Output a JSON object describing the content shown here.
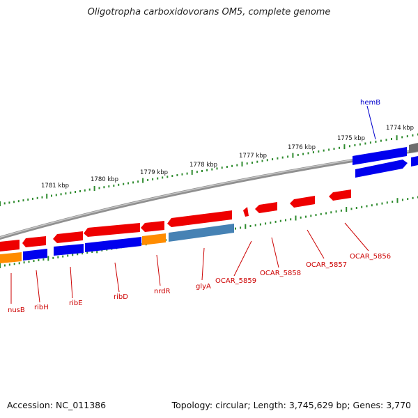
{
  "title": "Oligotropha carboxidovorans OM5, complete genome",
  "footer": {
    "accession": "Accession: NC_011386",
    "summary": "Topology: circular; Length: 3,745,629 bp; Genes: 3,770"
  },
  "colors": {
    "forward_gene": "#ff0000",
    "reverse_gene": "#0000ff",
    "other_gene": "#ff8c00",
    "rna_gene": "#4682b4",
    "backbone": "#888888",
    "tick": "#2e8b2e",
    "gene_label": "#cc0000",
    "label_blue": "#0000cc"
  },
  "kbp_labels": [
    {
      "id": "1774",
      "text": "1774 kbp"
    },
    {
      "id": "1775",
      "text": "1775 kbp"
    },
    {
      "id": "1776",
      "text": "1776 kbp"
    },
    {
      "id": "1777",
      "text": "1777 kbp"
    },
    {
      "id": "1778",
      "text": "1778 kbp"
    },
    {
      "id": "1779",
      "text": "1779 kbp"
    },
    {
      "id": "1780",
      "text": "1780 kbp"
    },
    {
      "id": "1781",
      "text": "1781 kbp"
    }
  ],
  "gene_labels": [
    {
      "id": "hemB",
      "text": "hemB",
      "color": "blue"
    },
    {
      "id": "nusB",
      "text": "nusB",
      "color": "red"
    },
    {
      "id": "ribH",
      "text": "ribH",
      "color": "red"
    },
    {
      "id": "ribE",
      "text": "ribE",
      "color": "red"
    },
    {
      "id": "ribD",
      "text": "ribD",
      "color": "red"
    },
    {
      "id": "nrdR",
      "text": "nrdR",
      "color": "red"
    },
    {
      "id": "glyA",
      "text": "glyA",
      "color": "red"
    },
    {
      "id": "OCAR_5859",
      "text": "OCAR_5859",
      "color": "red"
    },
    {
      "id": "OCAR_5858",
      "text": "OCAR_5858",
      "color": "red"
    },
    {
      "id": "OCAR_5857",
      "text": "OCAR_5857",
      "color": "red"
    },
    {
      "id": "OCAR_5856",
      "text": "OCAR_5856",
      "color": "red"
    }
  ]
}
